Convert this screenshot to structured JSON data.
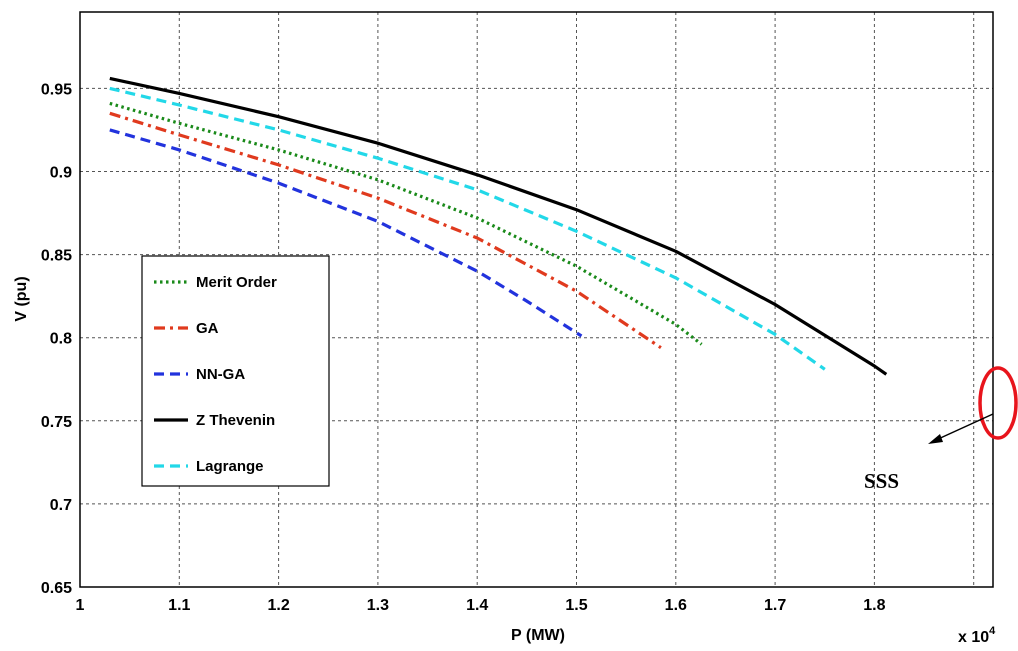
{
  "chart_data": {
    "type": "line",
    "xlabel": "P (MW)",
    "ylabel": "V (pu)",
    "x_multiplier_label": "x 10",
    "x_multiplier_exp": "4",
    "xlim": [
      1.0,
      1.85
    ],
    "ylim": [
      0.65,
      0.98
    ],
    "xticks": [
      1,
      1.1,
      1.2,
      1.3,
      1.4,
      1.5,
      1.6,
      1.7,
      1.8
    ],
    "xtick_labels": [
      "1",
      "1.1",
      "1.2",
      "1.3",
      "1.4",
      "1.5",
      "1.6",
      "1.7",
      "1.8"
    ],
    "yticks": [
      0.65,
      0.7,
      0.75,
      0.8,
      0.85,
      0.9,
      0.95
    ],
    "ytick_labels": [
      "0.65",
      "0.7",
      "0.75",
      "0.8",
      "0.85",
      "0.9",
      "0.95"
    ],
    "grid": true,
    "legend_position": "left",
    "series": [
      {
        "name": "Merit Order",
        "color": "#1a8a1a",
        "style": "dotted",
        "x": [
          1.03,
          1.1,
          1.2,
          1.3,
          1.4,
          1.5,
          1.6,
          1.626
        ],
        "y": [
          0.941,
          0.929,
          0.913,
          0.895,
          0.872,
          0.843,
          0.808,
          0.796
        ]
      },
      {
        "name": "GA",
        "color": "#e03a1e",
        "style": "dashdot",
        "x": [
          1.03,
          1.1,
          1.2,
          1.3,
          1.4,
          1.5,
          1.585
        ],
        "y": [
          0.935,
          0.922,
          0.904,
          0.884,
          0.86,
          0.828,
          0.794
        ]
      },
      {
        "name": "NN-GA",
        "color": "#2233dd",
        "style": "dashed",
        "x": [
          1.03,
          1.1,
          1.2,
          1.3,
          1.4,
          1.45,
          1.505
        ],
        "y": [
          0.925,
          0.913,
          0.893,
          0.87,
          0.84,
          0.822,
          0.801
        ]
      },
      {
        "name": "Z Thevenin",
        "color": "#000000",
        "style": "solid",
        "x": [
          1.03,
          1.1,
          1.2,
          1.3,
          1.4,
          1.5,
          1.6,
          1.7,
          1.8,
          1.812
        ],
        "y": [
          0.956,
          0.947,
          0.933,
          0.917,
          0.898,
          0.877,
          0.852,
          0.82,
          0.783,
          0.778
        ]
      },
      {
        "name": "Lagrange",
        "color": "#22d8e8",
        "style": "dashed",
        "x": [
          1.03,
          1.1,
          1.2,
          1.3,
          1.4,
          1.5,
          1.6,
          1.7,
          1.75
        ],
        "y": [
          0.95,
          0.94,
          0.925,
          0.908,
          0.889,
          0.864,
          0.836,
          0.802,
          0.781
        ]
      }
    ],
    "annotations": [
      {
        "text": "SSS",
        "color": "#000000"
      },
      {
        "marker": "ellipse",
        "color": "#e8141c"
      }
    ]
  }
}
